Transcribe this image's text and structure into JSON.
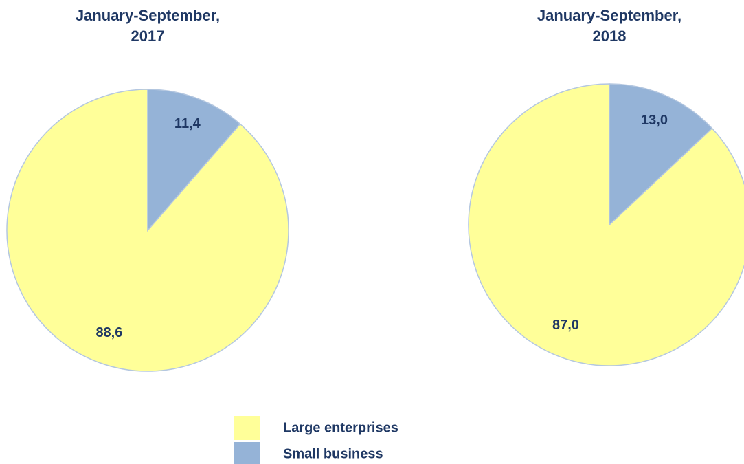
{
  "chart_data": [
    {
      "type": "pie",
      "title": "January-September, 2017",
      "categories": [
        "Large enterprises",
        "Small business"
      ],
      "values": [
        88.6,
        11.4
      ],
      "value_labels": [
        "88,6",
        "11,4"
      ],
      "colors": [
        "#ffff99",
        "#95b3d7"
      ]
    },
    {
      "type": "pie",
      "title": "January-September, 2018",
      "categories": [
        "Large enterprises",
        "Small business"
      ],
      "values": [
        87.0,
        13.0
      ],
      "value_labels": [
        "87,0",
        "13,0"
      ],
      "colors": [
        "#ffff99",
        "#95b3d7"
      ]
    }
  ]
}
